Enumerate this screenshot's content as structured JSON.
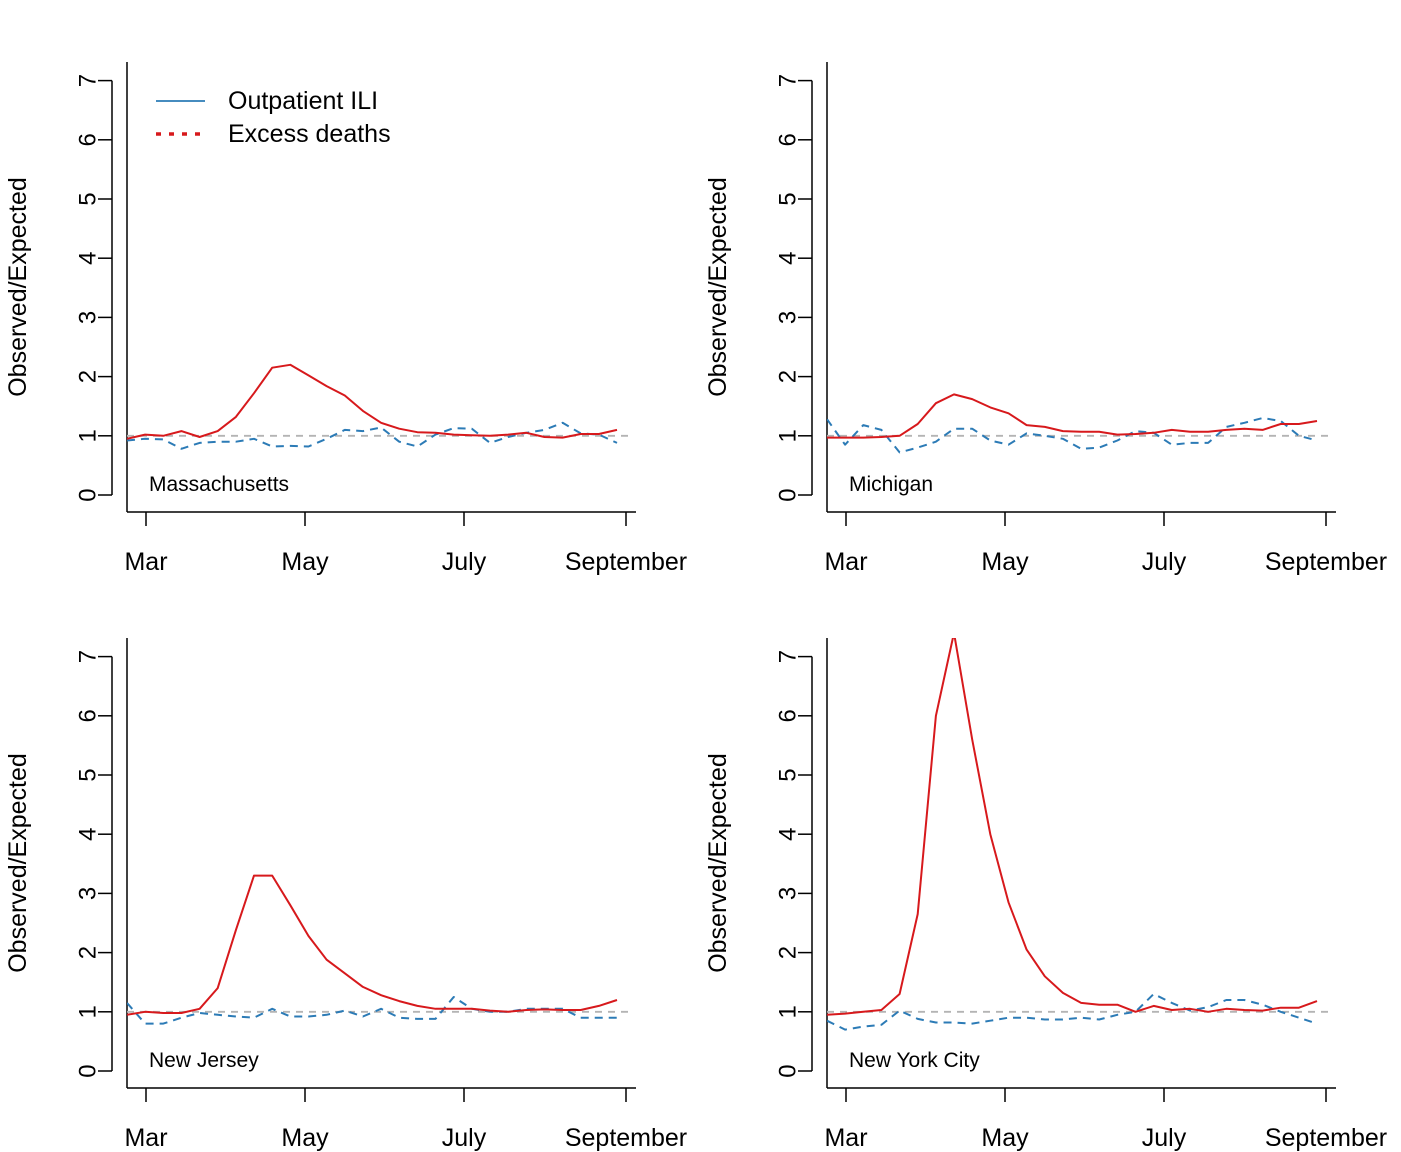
{
  "chart_data": [
    {
      "type": "line",
      "panel_label": "Massachusetts",
      "ylabel": "Observed/Expected",
      "xlabel": "",
      "ylim": [
        0,
        7
      ],
      "yticks": [
        0,
        1,
        2,
        3,
        4,
        5,
        6,
        7
      ],
      "x_tick_labels": [
        "Mar",
        "May",
        "July",
        "September"
      ],
      "x": [
        1,
        2,
        3,
        4,
        5,
        6,
        7,
        8,
        9,
        10,
        11,
        12,
        13,
        14,
        15,
        16,
        17,
        18,
        19,
        20,
        21,
        22,
        23,
        24,
        25,
        26,
        27,
        28
      ],
      "reference_line": 1,
      "series": [
        {
          "values": [
            0.95,
            1.02,
            1.0,
            1.08,
            0.98,
            1.08,
            1.32,
            1.72,
            2.15,
            2.2,
            2.02,
            1.84,
            1.68,
            1.42,
            1.22,
            1.12,
            1.06,
            1.05,
            1.02,
            1.01,
            1.0,
            1.02,
            1.05,
            0.98,
            0.97,
            1.03,
            1.03,
            1.1
          ],
          "color": "#d7191c",
          "dash": "solid"
        },
        {
          "values": [
            0.92,
            0.95,
            0.94,
            0.78,
            0.88,
            0.9,
            0.9,
            0.95,
            0.82,
            0.83,
            0.82,
            0.95,
            1.1,
            1.08,
            1.14,
            0.9,
            0.82,
            1.02,
            1.13,
            1.12,
            0.88,
            0.98,
            1.05,
            1.1,
            1.22,
            1.04,
            1.02,
            0.88
          ],
          "color": "#2c7bb6",
          "dash": "dashed"
        }
      ],
      "legend": {
        "placement": "top-left",
        "entries": [
          {
            "label": "Outpatient ILI",
            "color": "#2c7bb6",
            "dash": "solid"
          },
          {
            "label": "Excess deaths",
            "color": "#d7191c",
            "dash": "dotted"
          }
        ]
      }
    },
    {
      "type": "line",
      "panel_label": "Michigan",
      "ylabel": "Observed/Expected",
      "xlabel": "",
      "ylim": [
        0,
        7
      ],
      "yticks": [
        0,
        1,
        2,
        3,
        4,
        5,
        6,
        7
      ],
      "x_tick_labels": [
        "Mar",
        "May",
        "July",
        "September"
      ],
      "x": [
        1,
        2,
        3,
        4,
        5,
        6,
        7,
        8,
        9,
        10,
        11,
        12,
        13,
        14,
        15,
        16,
        17,
        18,
        19,
        20,
        21,
        22,
        23,
        24,
        25,
        26,
        27,
        28
      ],
      "reference_line": 1,
      "series": [
        {
          "values": [
            0.97,
            0.97,
            0.97,
            0.98,
            1.0,
            1.2,
            1.55,
            1.7,
            1.62,
            1.48,
            1.38,
            1.18,
            1.15,
            1.08,
            1.07,
            1.07,
            1.02,
            1.03,
            1.05,
            1.1,
            1.07,
            1.07,
            1.1,
            1.12,
            1.1,
            1.2,
            1.2,
            1.25
          ],
          "color": "#d7191c",
          "dash": "solid"
        },
        {
          "values": [
            1.28,
            0.85,
            1.18,
            1.1,
            0.72,
            0.8,
            0.9,
            1.12,
            1.12,
            0.92,
            0.85,
            1.04,
            1.0,
            0.95,
            0.78,
            0.8,
            0.92,
            1.08,
            1.05,
            0.85,
            0.88,
            0.88,
            1.15,
            1.22,
            1.3,
            1.25,
            1.0,
            0.92
          ],
          "color": "#2c7bb6",
          "dash": "dashed"
        }
      ]
    },
    {
      "type": "line",
      "panel_label": "New Jersey",
      "ylabel": "Observed/Expected",
      "xlabel": "",
      "ylim": [
        0,
        7
      ],
      "yticks": [
        0,
        1,
        2,
        3,
        4,
        5,
        6,
        7
      ],
      "x_tick_labels": [
        "Mar",
        "May",
        "July",
        "September"
      ],
      "x": [
        1,
        2,
        3,
        4,
        5,
        6,
        7,
        8,
        9,
        10,
        11,
        12,
        13,
        14,
        15,
        16,
        17,
        18,
        19,
        20,
        21,
        22,
        23,
        24,
        25,
        26,
        27,
        28
      ],
      "reference_line": 1,
      "series": [
        {
          "values": [
            0.95,
            1.0,
            0.98,
            0.98,
            1.05,
            1.4,
            2.38,
            3.3,
            3.3,
            2.8,
            2.28,
            1.88,
            1.65,
            1.42,
            1.28,
            1.18,
            1.1,
            1.05,
            1.05,
            1.05,
            1.02,
            1.0,
            1.03,
            1.04,
            1.03,
            1.03,
            1.1,
            1.2
          ],
          "color": "#d7191c",
          "dash": "solid"
        },
        {
          "values": [
            1.15,
            0.8,
            0.8,
            0.9,
            0.98,
            0.95,
            0.92,
            0.9,
            1.05,
            0.92,
            0.92,
            0.95,
            1.02,
            0.92,
            1.05,
            0.9,
            0.88,
            0.88,
            1.25,
            1.05,
            1.0,
            1.0,
            1.05,
            1.05,
            1.05,
            0.9,
            0.9,
            0.9
          ],
          "color": "#2c7bb6",
          "dash": "dashed"
        }
      ]
    },
    {
      "type": "line",
      "panel_label": "New York City",
      "ylabel": "Observed/Expected",
      "xlabel": "",
      "ylim": [
        0,
        7
      ],
      "yticks": [
        0,
        1,
        2,
        3,
        4,
        5,
        6,
        7
      ],
      "x_tick_labels": [
        "Mar",
        "May",
        "July",
        "September"
      ],
      "x": [
        1,
        2,
        3,
        4,
        5,
        6,
        7,
        8,
        9,
        10,
        11,
        12,
        13,
        14,
        15,
        16,
        17,
        18,
        19,
        20,
        21,
        22,
        23,
        24,
        25,
        26,
        27,
        28
      ],
      "reference_line": 1,
      "series": [
        {
          "values": [
            0.95,
            0.97,
            1.0,
            1.03,
            1.3,
            2.65,
            6.0,
            7.4,
            5.6,
            4.0,
            2.85,
            2.05,
            1.6,
            1.32,
            1.15,
            1.12,
            1.12,
            1.0,
            1.1,
            1.03,
            1.05,
            1.0,
            1.05,
            1.03,
            1.02,
            1.07,
            1.07,
            1.18
          ],
          "color": "#d7191c",
          "dash": "solid"
        },
        {
          "values": [
            0.85,
            0.7,
            0.75,
            0.78,
            1.02,
            0.88,
            0.82,
            0.82,
            0.8,
            0.85,
            0.9,
            0.9,
            0.87,
            0.87,
            0.9,
            0.87,
            0.95,
            1.0,
            1.3,
            1.15,
            1.02,
            1.08,
            1.2,
            1.2,
            1.12,
            1.0,
            0.9,
            0.8
          ],
          "color": "#2c7bb6",
          "dash": "dashed"
        }
      ]
    }
  ]
}
